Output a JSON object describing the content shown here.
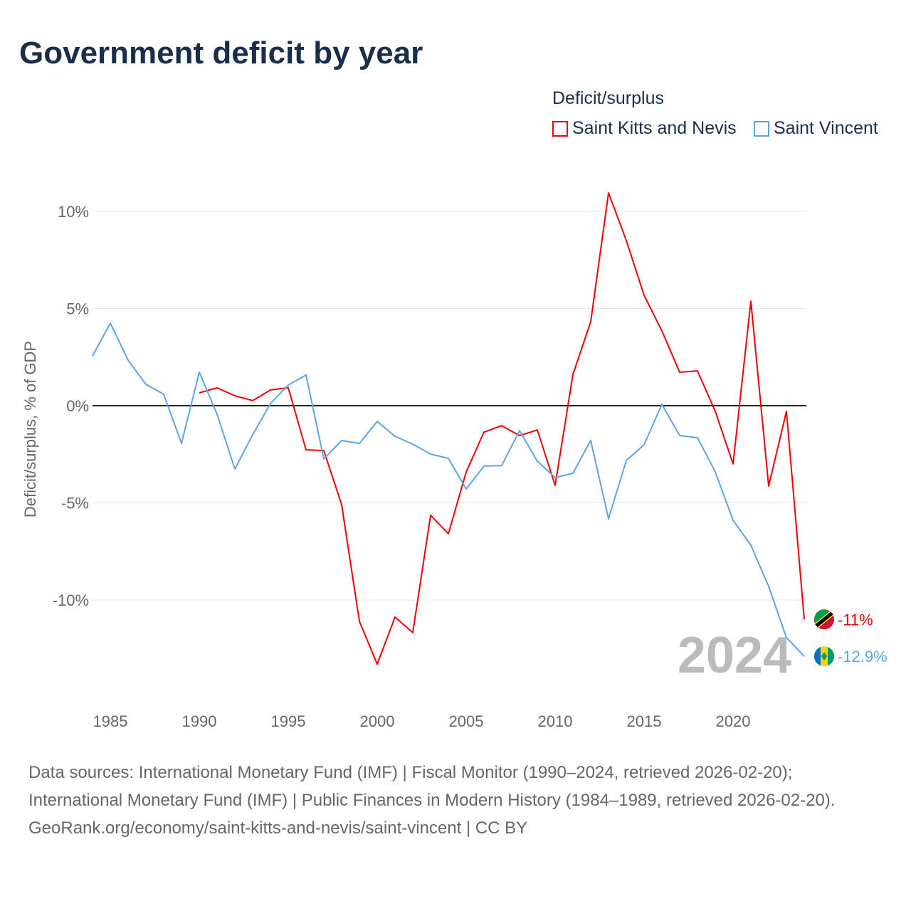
{
  "title": "Government deficit by year",
  "chart_data": {
    "type": "line",
    "title": "Government deficit by year",
    "ylabel": "Deficit/surplus, % of GDP",
    "xlabel": "",
    "xlim": [
      1984,
      2024
    ],
    "ylim": [
      -15,
      12
    ],
    "x_ticks": [
      1985,
      1990,
      1995,
      2000,
      2005,
      2010,
      2015,
      2020
    ],
    "y_ticks": [
      10,
      5,
      0,
      -5,
      -10
    ],
    "y_tick_labels": [
      "10%",
      "5%",
      "0%",
      "-5%",
      "-10%"
    ],
    "legend_title": "Deficit/surplus",
    "legend_position": "top-right",
    "current_year_label": "2024",
    "series": [
      {
        "name": "Saint Kitts and Nevis",
        "color": "#ee0000",
        "end_label": "-11%",
        "flag": "saint-kitts-and-nevis-flag",
        "x": [
          1990,
          1991,
          1992,
          1993,
          1994,
          1995,
          1996,
          1997,
          1998,
          1999,
          2000,
          2001,
          2002,
          2003,
          2004,
          2005,
          2006,
          2007,
          2008,
          2009,
          2010,
          2011,
          2012,
          2013,
          2014,
          2015,
          2016,
          2017,
          2018,
          2019,
          2020,
          2021,
          2022,
          2023,
          2024
        ],
        "values": [
          0.66,
          0.92,
          0.51,
          0.26,
          0.81,
          0.92,
          -2.27,
          -2.31,
          -5.09,
          -11.1,
          -13.3,
          -10.88,
          -11.68,
          -5.64,
          -6.59,
          -3.41,
          -1.36,
          -1.03,
          -1.54,
          -1.25,
          -4.1,
          1.61,
          4.32,
          10.95,
          8.5,
          5.68,
          3.85,
          1.72,
          1.79,
          -0.29,
          -3.0,
          5.38,
          -4.14,
          -0.29,
          -11.0
        ]
      },
      {
        "name": "Saint Vincent",
        "color": "#5aa5ea",
        "end_label": "-12.9%",
        "flag": "saint-vincent-flag",
        "x": [
          1984,
          1985,
          1986,
          1987,
          1988,
          1989,
          1990,
          1991,
          1992,
          1993,
          1994,
          1995,
          1996,
          1997,
          1998,
          1999,
          2000,
          2001,
          2002,
          2003,
          2004,
          2005,
          2006,
          2007,
          2008,
          2009,
          2010,
          2011,
          2012,
          2013,
          2014,
          2015,
          2016,
          2017,
          2018,
          2019,
          2020,
          2021,
          2022,
          2023,
          2024
        ],
        "values": [
          2.56,
          4.25,
          2.34,
          1.1,
          0.59,
          -1.94,
          1.72,
          -0.44,
          -3.26,
          -1.5,
          0.11,
          1.06,
          1.58,
          -2.75,
          -1.79,
          -1.94,
          -0.81,
          -1.58,
          -1.98,
          -2.49,
          -2.71,
          -4.29,
          -3.11,
          -3.08,
          -1.28,
          -2.86,
          -3.7,
          -3.48,
          -1.79,
          -5.82,
          -2.82,
          -2.01,
          0.07,
          -1.54,
          -1.65,
          -3.41,
          -5.9,
          -7.18,
          -9.3,
          -11.94,
          -12.9
        ]
      }
    ]
  },
  "footer": {
    "sources": "Data sources: International Monetary Fund (IMF) | Fiscal Monitor (1990–2024, retrieved 2026-02-20); International Monetary Fund (IMF) | Public Finances in Modern History (1984–1989, retrieved 2026-02-20).",
    "link": "GeoRank.org/economy/saint-kitts-and-nevis/saint-vincent | CC BY"
  }
}
